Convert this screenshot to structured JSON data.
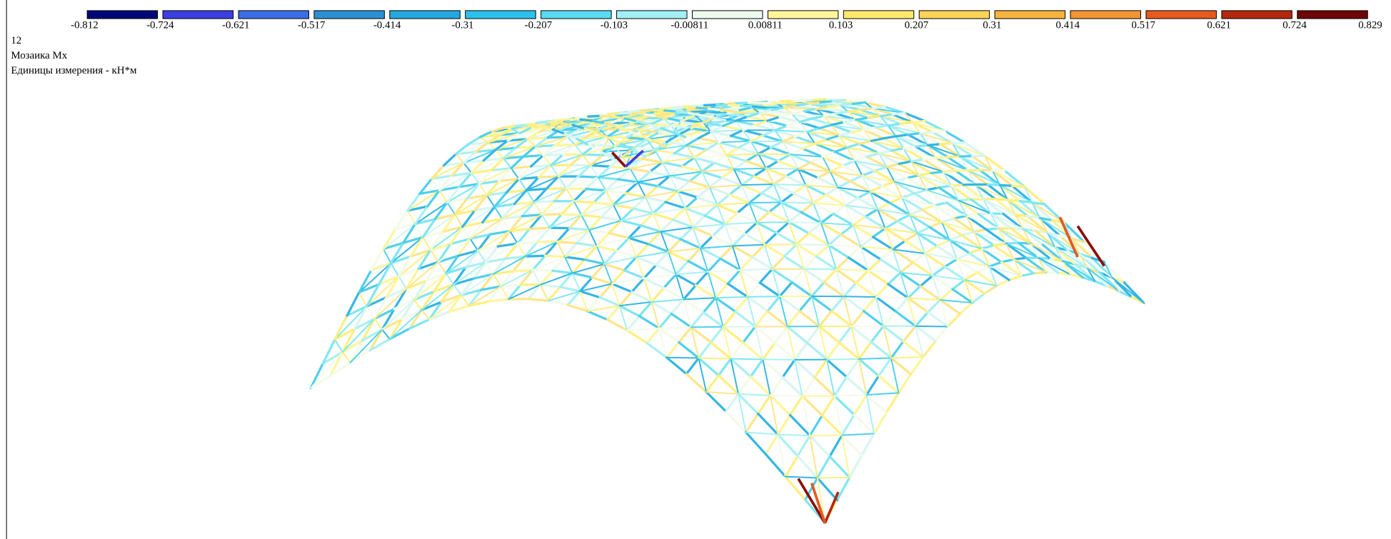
{
  "legend": {
    "colors": [
      "#00087a",
      "#3b3fe0",
      "#3a6de6",
      "#2b8fd2",
      "#23a9df",
      "#2cc1ea",
      "#58dbf0",
      "#a2f0f5",
      "#eefaee",
      "#fff69c",
      "#ffe96b",
      "#fbd357",
      "#f6b33e",
      "#f39532",
      "#e45a1e",
      "#b4270f",
      "#6e0707"
    ],
    "labels": [
      "-0.812",
      "-0.724",
      "-0.621",
      "-0.517",
      "-0.414",
      "-0.31",
      "-0.207",
      "-0.103",
      "-0.00811",
      "0.00811",
      "0.103",
      "0.207",
      "0.31",
      "0.414",
      "0.517",
      "0.621",
      "0.724",
      "0.829"
    ]
  },
  "info": {
    "number": "12",
    "title": "Мозаика Mx",
    "units": "Единицы измерения - кН*м"
  }
}
